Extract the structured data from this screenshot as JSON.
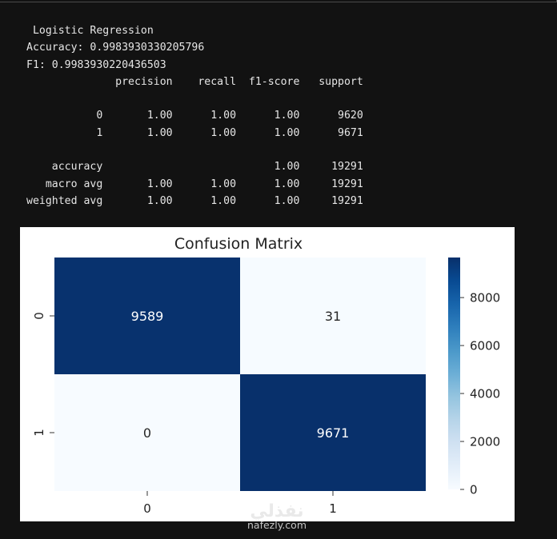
{
  "console": {
    "lines": [
      " Logistic Regression",
      "Accuracy: 0.9983930330205796",
      "F1: 0.9983930220436503",
      "              precision    recall  f1-score   support",
      "",
      "           0       1.00      1.00      1.00      9620",
      "           1       1.00      1.00      1.00      9671",
      "",
      "    accuracy                           1.00     19291",
      "   macro avg       1.00      1.00      1.00     19291",
      "weighted avg       1.00      1.00      1.00     19291"
    ]
  },
  "chart_data": {
    "type": "heatmap",
    "title": "Confusion Matrix",
    "x_categories": [
      "0",
      "1"
    ],
    "y_categories": [
      "0",
      "1"
    ],
    "values": [
      [
        9589,
        31
      ],
      [
        0,
        9671
      ]
    ],
    "colormap": "Blues",
    "color_low": "#f7fbff",
    "color_high": "#08306b",
    "colorbar": {
      "min": 0,
      "max": 9671,
      "ticks": [
        0,
        2000,
        4000,
        6000,
        8000
      ]
    }
  },
  "watermark": {
    "arabic": "نفذلي",
    "site": "nafezly.com"
  }
}
